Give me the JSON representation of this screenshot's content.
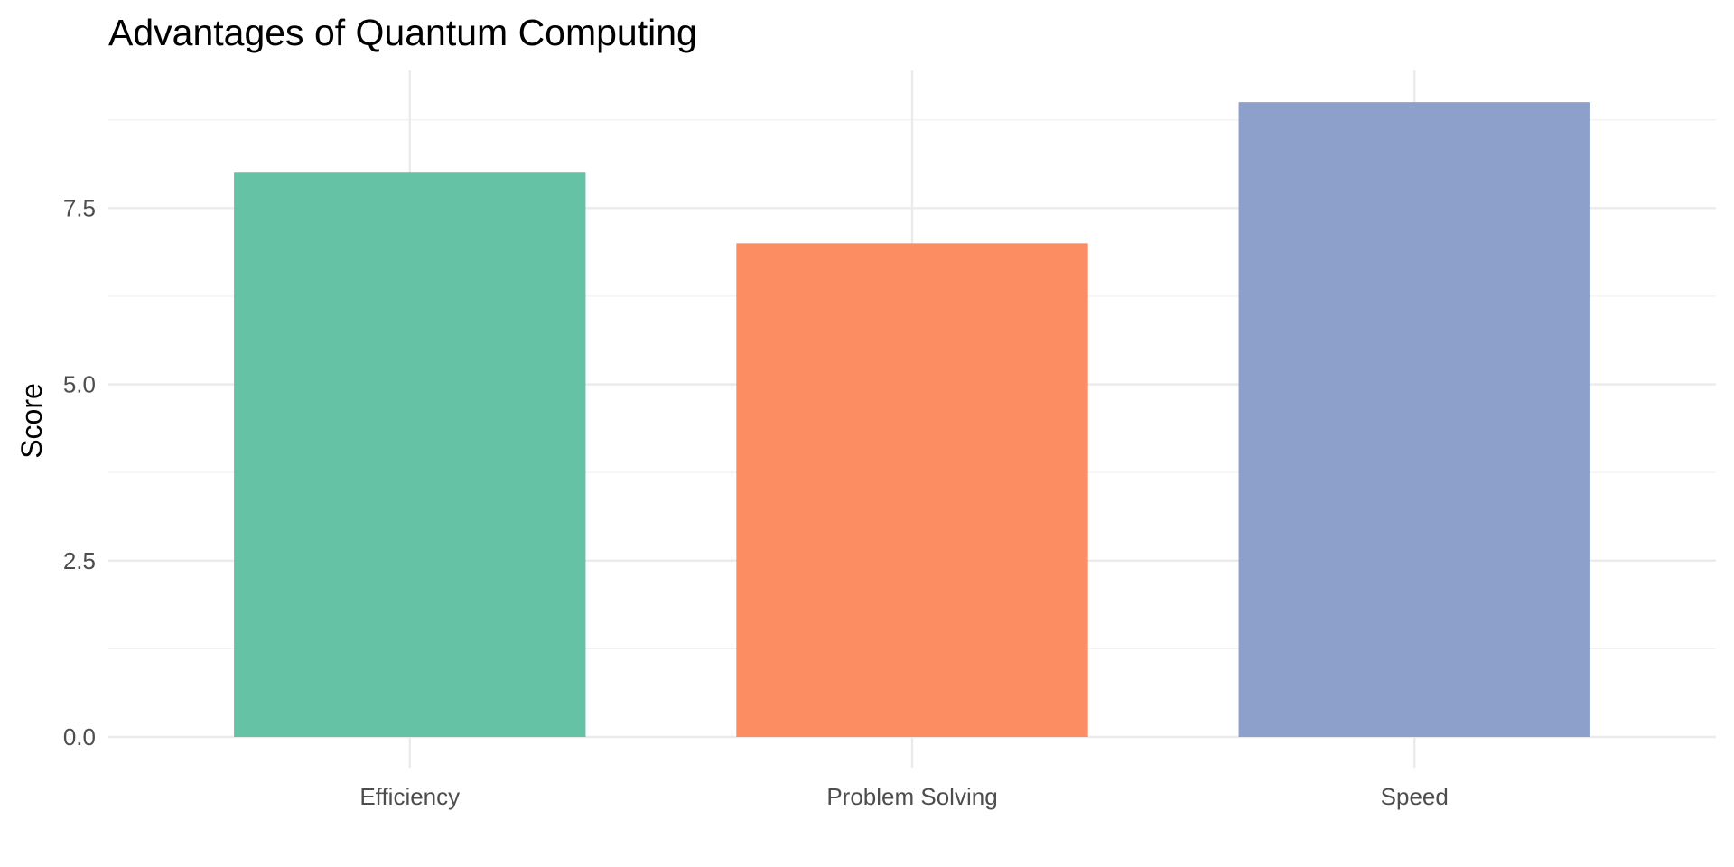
{
  "chart_data": {
    "type": "bar",
    "title": "Advantages of Quantum Computing",
    "xlabel": "",
    "ylabel": "Score",
    "categories": [
      "Efficiency",
      "Problem Solving",
      "Speed"
    ],
    "values": [
      8,
      7,
      9
    ],
    "colors": [
      "#66c2a5",
      "#fc8d62",
      "#8da0cb"
    ],
    "ylim": [
      0,
      9.45
    ],
    "y_ticks": [
      0,
      2.5,
      5,
      7.5
    ],
    "y_tick_labels": [
      "0.0",
      "2.5",
      "5.0",
      "7.5"
    ],
    "grid": true,
    "legend": "none"
  }
}
